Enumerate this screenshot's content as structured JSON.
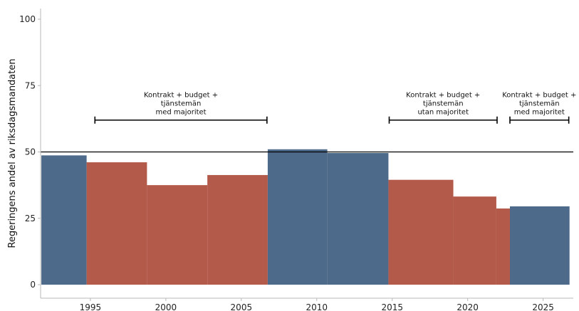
{
  "chart_data": {
    "type": "bar",
    "title": "",
    "xlabel": "",
    "ylabel": "Regeringens andel av riksdagsmandaten",
    "xlim": [
      1991.7,
      2027.0
    ],
    "ylim": [
      0,
      100
    ],
    "x_ticks": [
      1995,
      2000,
      2005,
      2010,
      2015,
      2020,
      2025
    ],
    "y_ticks": [
      0,
      25,
      50,
      75,
      100
    ],
    "reference_line": 50,
    "grid": false,
    "colors": {
      "blue": "#4e6a8a",
      "red": "#b45a4b"
    },
    "periods": [
      {
        "start": 1991.75,
        "end": 1994.75,
        "value": 48.7,
        "color": "blue"
      },
      {
        "start": 1994.75,
        "end": 1998.75,
        "value": 46.1,
        "color": "red"
      },
      {
        "start": 1998.75,
        "end": 2002.75,
        "value": 37.5,
        "color": "red"
      },
      {
        "start": 2002.75,
        "end": 2006.75,
        "value": 41.3,
        "color": "red"
      },
      {
        "start": 2006.75,
        "end": 2010.7,
        "value": 51.0,
        "color": "blue"
      },
      {
        "start": 2010.7,
        "end": 2014.75,
        "value": 49.6,
        "color": "blue"
      },
      {
        "start": 2014.75,
        "end": 2019.05,
        "value": 39.5,
        "color": "red"
      },
      {
        "start": 2019.05,
        "end": 2021.9,
        "value": 33.2,
        "color": "red"
      },
      {
        "start": 2021.9,
        "end": 2022.8,
        "value": 28.7,
        "color": "red"
      },
      {
        "start": 2022.8,
        "end": 2026.75,
        "value": 29.5,
        "color": "blue"
      }
    ],
    "annotations": [
      {
        "start": 1995.3,
        "end": 2006.7,
        "y": 62,
        "lines": [
          "Kontrakt + budget +",
          "tjänstemän",
          "med majoritet"
        ]
      },
      {
        "start": 2014.8,
        "end": 2021.95,
        "y": 62,
        "lines": [
          "Kontrakt + budget +",
          "tjänstemän",
          "utan majoritet"
        ]
      },
      {
        "start": 2022.8,
        "end": 2026.7,
        "y": 62,
        "lines": [
          "Kontrakt + budget +",
          "tjänstemän",
          "med majoritet"
        ]
      }
    ]
  }
}
